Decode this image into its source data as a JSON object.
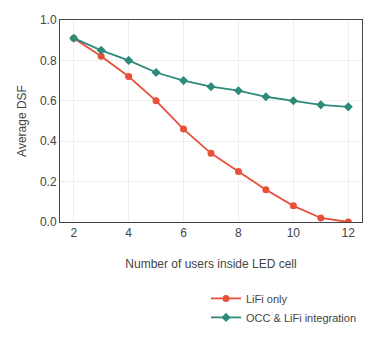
{
  "chart_data": {
    "type": "line",
    "x": [
      2,
      3,
      4,
      5,
      6,
      7,
      8,
      9,
      10,
      11,
      12
    ],
    "series": [
      {
        "name": "LiFi only",
        "color": "#e8503a",
        "marker": "circle",
        "values": [
          0.91,
          0.82,
          0.72,
          0.6,
          0.46,
          0.34,
          0.25,
          0.16,
          0.08,
          0.02,
          0.0
        ]
      },
      {
        "name": "OCC & LiFi integration",
        "color": "#2e8b7a",
        "marker": "diamond",
        "values": [
          0.91,
          0.85,
          0.8,
          0.74,
          0.7,
          0.67,
          0.65,
          0.62,
          0.6,
          0.58,
          0.57
        ]
      }
    ],
    "xlabel": "Number of users inside LED cell",
    "ylabel": "Average DSF",
    "xlim": [
      1.5,
      12.5
    ],
    "ylim": [
      0.0,
      1.0
    ],
    "xticks": [
      2,
      4,
      6,
      8,
      10,
      12
    ],
    "yticks": [
      {
        "value": 0,
        "label": "0.0"
      },
      0.2,
      0.4,
      0.6,
      0.8,
      {
        "value": 1,
        "label": "1.0"
      }
    ],
    "grid": true,
    "legend": "bottom right"
  }
}
